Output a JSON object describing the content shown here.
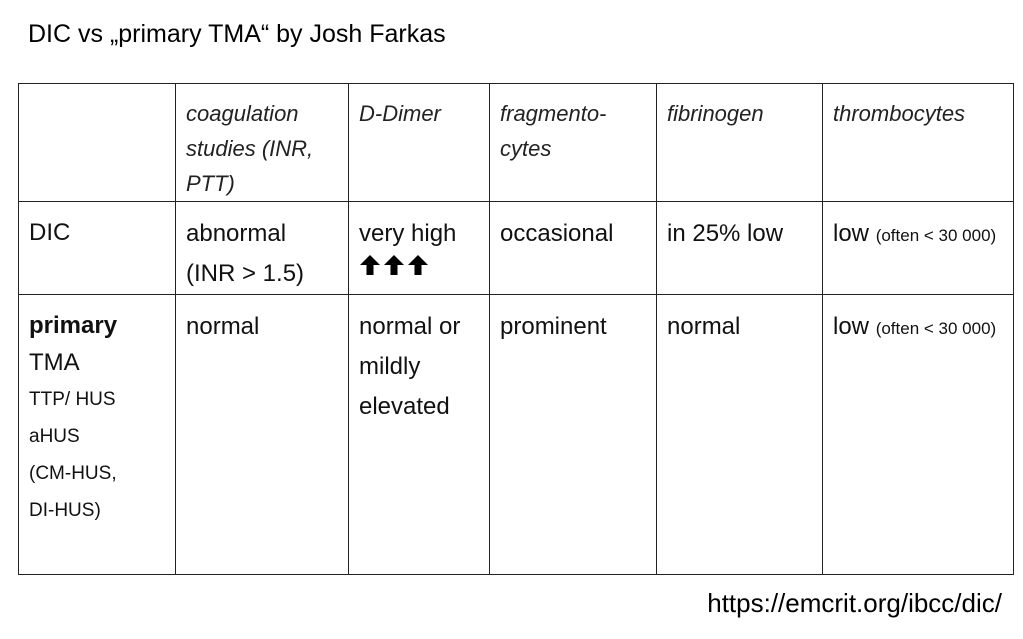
{
  "title": "DIC vs „primary TMA“ by Josh Farkas",
  "table": {
    "header": {
      "corner": "",
      "coag": "coagulation studies (INR, PTT)",
      "ddimer": "D-Dimer",
      "fragmentocytes": "fragmento-cytes",
      "fibrinogen": "fibrinogen",
      "thrombocytes": "thrombocytes"
    },
    "dic": {
      "label": "DIC",
      "coag_1": "abnormal",
      "coag_2": "(INR > 1.5)",
      "ddimer": "very high",
      "ddimer_arrows": "🡅🡅🡅",
      "fragmentocytes": "occasional",
      "fibrinogen": "in 25% low",
      "thrombocytes": "low",
      "thrombocytes_note": "(often < 30 000)"
    },
    "tma": {
      "label_bold": "primary",
      "label_line2": "TMA",
      "label_line3": "TTP/ HUS",
      "label_line4": "aHUS",
      "label_line5": "(CM-HUS,",
      "label_line6": "DI-HUS)",
      "coag": "normal",
      "ddimer": "normal or mildly elevated",
      "fragmentocytes": "prominent",
      "fibrinogen": "normal",
      "thrombocytes": "low",
      "thrombocytes_note": "(often < 30 000)"
    }
  },
  "source_url": "https://emcrit.org/ibcc/dic/"
}
